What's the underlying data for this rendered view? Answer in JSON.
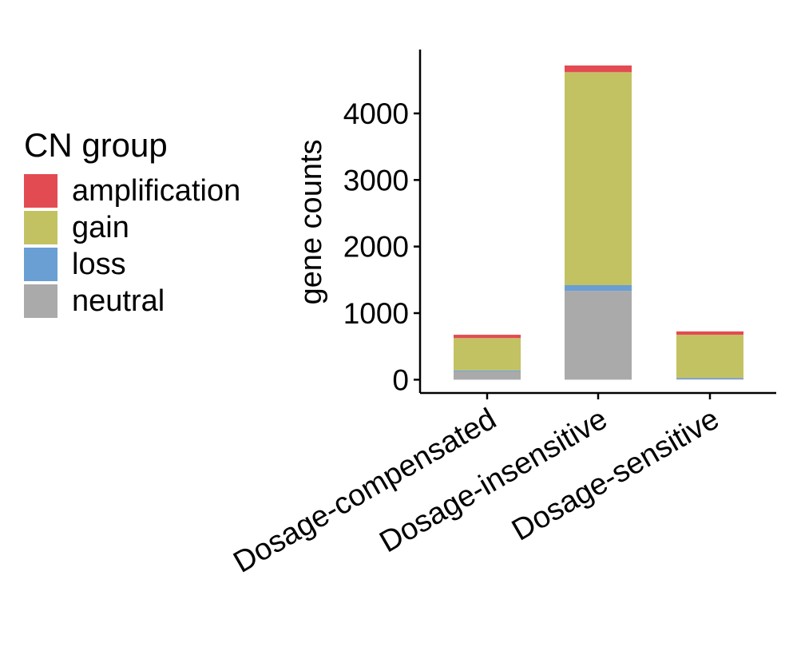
{
  "chart_data": {
    "type": "bar",
    "stacked": true,
    "categories": [
      "Dosage-compensated",
      "Dosage-insensitive",
      "Dosage-sensitive"
    ],
    "series": [
      {
        "name": "neutral",
        "color": "#aaaaaa",
        "values": [
          125,
          1335,
          15
        ]
      },
      {
        "name": "loss",
        "color": "#6a9fd4",
        "values": [
          15,
          85,
          15
        ]
      },
      {
        "name": "gain",
        "color": "#c3c262",
        "values": [
          485,
          3200,
          645
        ]
      },
      {
        "name": "amplification",
        "color": "#e34b52",
        "values": [
          50,
          100,
          50
        ]
      }
    ],
    "ylabel": "gene counts",
    "xlabel": "",
    "ylim": [
      -200,
      4960
    ],
    "yticks": [
      0,
      1000,
      2000,
      3000,
      4000
    ],
    "grid": false,
    "legend": {
      "title": "CN group",
      "position": "left",
      "items": [
        {
          "label": "amplification",
          "color": "#e34b52"
        },
        {
          "label": "gain",
          "color": "#c3c262"
        },
        {
          "label": "loss",
          "color": "#6a9fd4"
        },
        {
          "label": "neutral",
          "color": "#aaaaaa"
        }
      ]
    }
  }
}
